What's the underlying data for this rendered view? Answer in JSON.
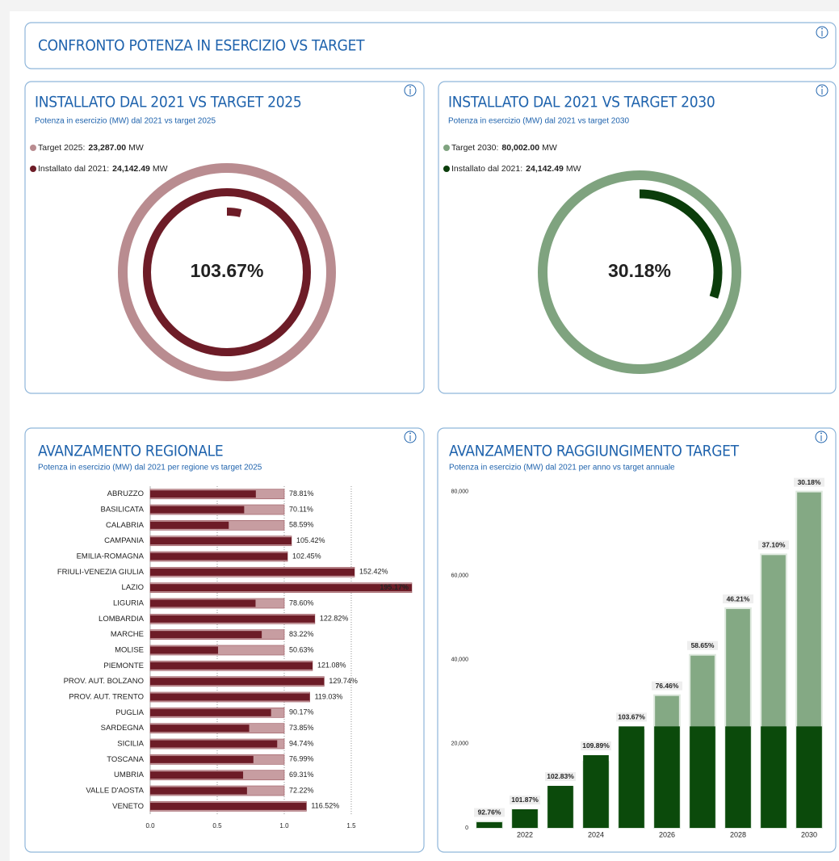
{
  "header": {
    "title": "CONFRONTO POTENZA IN ESERCIZIO VS TARGET"
  },
  "chart_data": [
    {
      "type": "donut",
      "title": "INSTALLATO DAL 2021 VS TARGET 2025",
      "subtitle": "Potenza in esercizio (MW) dal 2021 vs target 2025",
      "unit": "MW",
      "series": [
        {
          "name": "Target 2025:",
          "color": "#b98c90",
          "value": 23287,
          "value_label": "23,287.00"
        },
        {
          "name": "Installato dal 2021:",
          "color": "#6d1c27",
          "value": 24142.49,
          "value_label": "24,142.49"
        }
      ],
      "center_label": "103.67%"
    },
    {
      "type": "donut",
      "title": "INSTALLATO DAL 2021 VS TARGET 2030",
      "subtitle": "Potenza in esercizio (MW) dal 2021 vs target 2030",
      "unit": "MW",
      "series": [
        {
          "name": "Target 2030:",
          "color": "#7fa37f",
          "value": 80002,
          "value_label": "80,002.00"
        },
        {
          "name": "Installato dal 2021:",
          "color": "#0b3d0b",
          "value": 24142.49,
          "value_label": "24,142.49"
        }
      ],
      "center_label": "30.18%"
    },
    {
      "type": "hbar",
      "title": "AVANZAMENTO REGIONALE",
      "subtitle": "Potenza in esercizio (MW) dal 2021 per regione vs target 2025",
      "categories": [
        "ABRUZZO",
        "BASILICATA",
        "CALABRIA",
        "CAMPANIA",
        "EMILIA-ROMAGNA",
        "FRIULI-VENEZIA GIULIA",
        "LAZIO",
        "LIGURIA",
        "LOMBARDIA",
        "MARCHE",
        "MOLISE",
        "PIEMONTE",
        "PROV. AUT. BOLZANO",
        "PROV. AUT. TRENTO",
        "PUGLIA",
        "SARDEGNA",
        "SICILIA",
        "TOSCANA",
        "UMBRIA",
        "VALLE D'AOSTA",
        "VENETO"
      ],
      "values": [
        0.7881,
        0.7011,
        0.5859,
        1.0542,
        1.0245,
        1.5242,
        1.9517,
        0.786,
        1.2282,
        0.8322,
        0.5063,
        1.2108,
        1.2974,
        1.1903,
        0.9017,
        0.7385,
        0.9474,
        0.7699,
        0.6931,
        0.7222,
        1.1652
      ],
      "value_labels": [
        "78.81%",
        "70.11%",
        "58.59%",
        "105.42%",
        "102.45%",
        "152.42%",
        "195.17%",
        "78.60%",
        "122.82%",
        "83.22%",
        "50.63%",
        "121.08%",
        "129.74%",
        "119.03%",
        "90.17%",
        "73.85%",
        "94.74%",
        "76.99%",
        "69.31%",
        "72.22%",
        "116.52%"
      ],
      "target": 1,
      "color": "#6d1c27",
      "target_color": "#c79da1",
      "xlim": [
        0,
        1.97
      ],
      "xticks": [
        {
          "value": 0,
          "label": "0.0"
        },
        0.5,
        {
          "value": 1,
          "label": "1.0"
        },
        1.5
      ],
      "grid": true
    },
    {
      "type": "vbar",
      "title": "AVANZAMENTO RAGGIUNGIMENTO TARGET",
      "subtitle": "Potenza in esercizio (MW) dal 2021 per anno vs target annuale",
      "x": [
        2021,
        2022,
        2023,
        2024,
        2025,
        2026,
        2027,
        2028,
        2029,
        2030
      ],
      "series": [
        {
          "name": "Target",
          "color": "#6f9a6f",
          "values": [
            1455,
            4340,
            9725,
            15740,
            23287,
            31575,
            41164,
            52245,
            65074,
            80002
          ]
        },
        {
          "name": "Installato",
          "color": "#0b4a0b",
          "values": [
            1350,
            4420,
            10000,
            17300,
            24142.49,
            24142.49,
            24142.49,
            24142.49,
            24142.49,
            24142.49
          ]
        }
      ],
      "annotations": [
        "92.76%",
        "101.87%",
        "102.83%",
        "109.89%",
        "103.67%",
        "76.46%",
        "58.65%",
        "46.21%",
        "37.10%",
        "30.18%"
      ],
      "xlim": [
        2020.5,
        2030.5
      ],
      "xticks": [
        2022,
        2024,
        2026,
        2028,
        2030
      ],
      "ylim": [
        0,
        83000
      ],
      "yticks": [
        0,
        {
          "value": 20000,
          "label": "20,000"
        },
        {
          "value": 40000,
          "label": "40,000"
        },
        {
          "value": 60000,
          "label": "60,000"
        },
        {
          "value": 80000,
          "label": "80,000"
        }
      ]
    }
  ]
}
